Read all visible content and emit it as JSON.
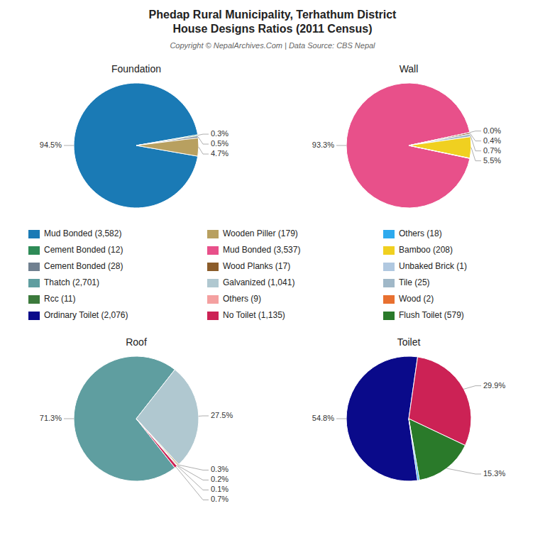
{
  "title": "Phedap Rural Municipality, Terhathum District\nHouse Designs Ratios (2011 Census)",
  "subtitle": "Copyright © NepalArchives.Com | Data Source: CBS Nepal",
  "series": [
    {
      "name": "Mud Bonded (3,582)",
      "color": "#1a7ab5"
    },
    {
      "name": "Wooden Piller (179)",
      "color": "#b8a060"
    },
    {
      "name": "Others (18)",
      "color": "#2eaaee"
    },
    {
      "name": "Cement Bonded (12)",
      "color": "#2e8b57"
    },
    {
      "name": "Mud Bonded (3,537)",
      "color": "#e8508a"
    },
    {
      "name": "Bamboo (208)",
      "color": "#f0d020"
    },
    {
      "name": "Cement Bonded (28)",
      "color": "#708090"
    },
    {
      "name": "Wood Planks (17)",
      "color": "#8b5c2a"
    },
    {
      "name": "Unbaked Brick (1)",
      "color": "#b0c8e0"
    },
    {
      "name": "Thatch (2,701)",
      "color": "#5f9ea0"
    },
    {
      "name": "Galvanized (1,041)",
      "color": "#b0c8d0"
    },
    {
      "name": "Tile (25)",
      "color": "#a0b8c8"
    },
    {
      "name": "Rcc (11)",
      "color": "#3c7a3c"
    },
    {
      "name": "Others (9)",
      "color": "#f4a0a0"
    },
    {
      "name": "Wood (2)",
      "color": "#e87030"
    },
    {
      "name": "Ordinary Toilet (2,076)",
      "color": "#0a0a8a"
    },
    {
      "name": "No Toilet (1,135)",
      "color": "#cc2255"
    },
    {
      "name": "Flush Toilet (579)",
      "color": "#2a7a2a"
    }
  ],
  "chart_data": [
    {
      "type": "pie",
      "title": "Foundation",
      "values": [
        94.5,
        0.3,
        0.5,
        4.7
      ],
      "value_labels": [
        "94.5%",
        "0.3%",
        "0.5%",
        "4.7%"
      ],
      "colors": [
        "#1a7ab5",
        "#2e8b57",
        "#708090",
        "#b8a060"
      ]
    },
    {
      "type": "pie",
      "title": "Wall",
      "values": [
        93.3,
        0.0,
        0.4,
        0.7,
        5.5,
        0.06
      ],
      "value_labels": [
        "93.3%",
        "0.0%",
        "0.4%",
        "0.7%",
        "5.5%",
        null
      ],
      "colors": [
        "#e8508a",
        "#b0c8e0",
        "#8b5c2a",
        "#a0b8c8",
        "#f0d020",
        "#e87030"
      ]
    },
    {
      "type": "pie",
      "title": "Roof",
      "values": [
        71.3,
        27.5,
        0.3,
        0.2,
        0.1,
        0.7
      ],
      "value_labels": [
        "71.3%",
        "27.5%",
        "0.3%",
        "0.2%",
        "0.1%",
        "0.7%"
      ],
      "colors": [
        "#5f9ea0",
        "#b0c8d0",
        "#b8a060",
        "#8b5c2a",
        "#f4a0a0",
        "#cc2255"
      ]
    },
    {
      "type": "pie",
      "title": "Toilet",
      "values": [
        54.8,
        29.9,
        15.3,
        0.47
      ],
      "value_labels": [
        "54.8%",
        "29.9%",
        "15.3%",
        null
      ],
      "colors": [
        "#0a0a8a",
        "#cc2255",
        "#2a7a2a",
        "#2eaaee"
      ]
    }
  ]
}
